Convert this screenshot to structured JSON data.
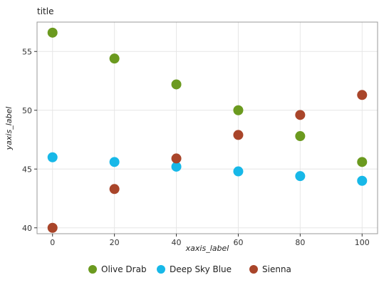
{
  "chart_data": {
    "type": "scatter",
    "title": "title",
    "xlabel": "xaxis_label",
    "ylabel": "yaxis_label",
    "xlim": [
      -5,
      105
    ],
    "ylim": [
      39.5,
      57.5
    ],
    "x_ticks": [
      0,
      20,
      40,
      60,
      80,
      100
    ],
    "y_ticks": [
      40,
      45,
      50,
      55
    ],
    "grid": true,
    "legend_position": "bottom",
    "series": [
      {
        "name": "Olive Drab",
        "color": "#6b9a1f",
        "x": [
          0,
          20,
          40,
          60,
          80,
          100
        ],
        "y": [
          56.6,
          54.4,
          52.2,
          50.0,
          47.8,
          45.6
        ]
      },
      {
        "name": "Deep Sky Blue",
        "color": "#17b8e8",
        "x": [
          0,
          20,
          40,
          60,
          80,
          100
        ],
        "y": [
          46.0,
          45.6,
          45.2,
          44.8,
          44.4,
          44.0
        ]
      },
      {
        "name": "Sienna",
        "color": "#a9452a",
        "x": [
          0,
          20,
          40,
          60,
          80,
          100
        ],
        "y": [
          40.0,
          43.3,
          45.9,
          47.9,
          49.6,
          51.3
        ]
      }
    ]
  }
}
